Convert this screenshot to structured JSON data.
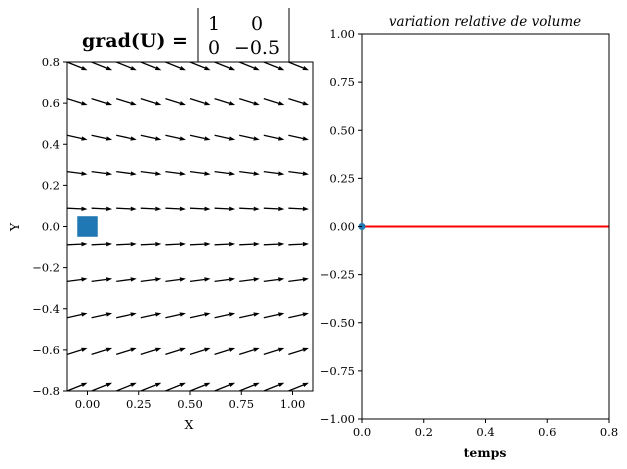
{
  "chart_data": [
    {
      "type": "quiver",
      "title_lhs": "grad(U) =",
      "title_matrix": [
        [
          "1",
          "0"
        ],
        [
          "0",
          "−0.5"
        ]
      ],
      "gradient": [
        [
          1,
          0
        ],
        [
          0,
          -0.5
        ]
      ],
      "xlabel": "X",
      "ylabel": "Y",
      "xlim": [
        -0.1,
        1.1
      ],
      "ylim": [
        -0.8,
        0.8
      ],
      "xticks": [
        0.0,
        0.25,
        0.5,
        0.75,
        1.0
      ],
      "xtick_labels": [
        "0.00",
        "0.25",
        "0.50",
        "0.75",
        "1.00"
      ],
      "yticks": [
        -0.8,
        -0.6,
        -0.4,
        -0.2,
        0.0,
        0.2,
        0.4,
        0.6,
        0.8
      ],
      "ytick_labels": [
        "−0.8",
        "−0.6",
        "−0.4",
        "−0.2",
        "0.0",
        "0.2",
        "0.4",
        "0.6",
        "0.8"
      ],
      "grid_x": [
        -0.1,
        0.02,
        0.14,
        0.26,
        0.38,
        0.5,
        0.62,
        0.74,
        0.86,
        0.98,
        1.1
      ],
      "grid_y": [
        -0.8,
        -0.622,
        -0.444,
        -0.267,
        -0.089,
        0.089,
        0.267,
        0.444,
        0.622,
        0.8
      ],
      "u": 1,
      "v_per_row": [
        0.4,
        0.311,
        0.222,
        0.133,
        0.044,
        -0.044,
        -0.133,
        -0.222,
        -0.311,
        -0.4
      ],
      "arrow_color": "#000000",
      "marker": {
        "shape": "square",
        "center": [
          0,
          0
        ],
        "side": 0.1,
        "color": "#1f77b4"
      },
      "grid": false
    },
    {
      "type": "line",
      "title": "variation relative de volume",
      "xlabel": "temps",
      "ylabel": "",
      "xlim": [
        0,
        0.8
      ],
      "ylim": [
        -1,
        1
      ],
      "xticks": [
        0.0,
        0.2,
        0.4,
        0.6,
        0.8
      ],
      "xtick_labels": [
        "0.0",
        "0.2",
        "0.4",
        "0.6",
        "0.8"
      ],
      "yticks": [
        -1,
        -0.75,
        -0.5,
        -0.25,
        0,
        0.25,
        0.5,
        0.75,
        1
      ],
      "ytick_labels": [
        "−1.00",
        "−0.75",
        "−0.50",
        "−0.25",
        "0.00",
        "0.25",
        "0.50",
        "0.75",
        "1.00"
      ],
      "series": [
        {
          "x": [
            0,
            0.8
          ],
          "y": [
            0,
            0
          ],
          "color": "#ff0000"
        }
      ],
      "point": {
        "x": 0,
        "y": 0,
        "color": "#1f77b4"
      },
      "grid": false
    }
  ]
}
